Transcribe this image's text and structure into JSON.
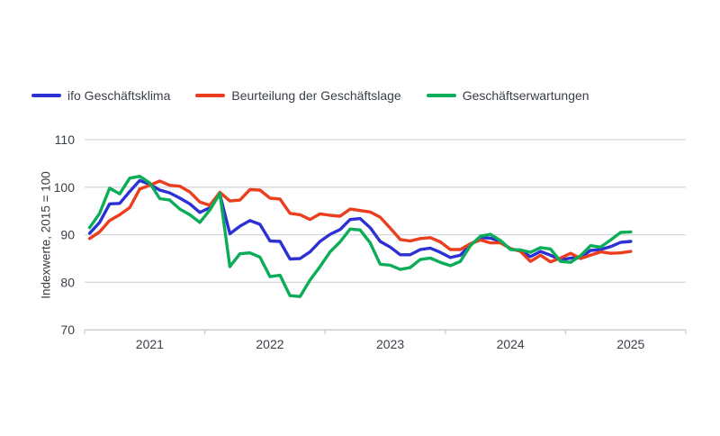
{
  "legend": [
    {
      "label": "ifo Geschäftsklima",
      "color": "#2d31d3"
    },
    {
      "label": "Beurteilung der Geschäftslage",
      "color": "#eb3e1f"
    },
    {
      "label": "Geschäftserwartungen",
      "color": "#0cad58"
    }
  ],
  "colors": {
    "background": "#ffffff",
    "text": "#3a3f47",
    "gridline": "#d4d7da",
    "baseline": "#c6cacd",
    "series_climate": "#2d31d3",
    "series_lage": "#eb3e1f",
    "series_erwartungen": "#0cad58"
  },
  "chart_data": {
    "type": "line",
    "title": "",
    "xlabel": "",
    "ylabel": "Indexwerte, 2015 = 100",
    "ylim": [
      70,
      110
    ],
    "yticks": [
      110,
      100,
      90,
      80,
      70
    ],
    "grid": "horizontal",
    "legend_position": "top",
    "x_start": "2021-01",
    "x_end": "2025-07",
    "x_frequency": "monthly",
    "x_year_labels": [
      "2021",
      "2022",
      "2023",
      "2024",
      "2025"
    ],
    "series": [
      {
        "name": "ifo Geschäftsklima",
        "color": "#2d31d3",
        "values": [
          90.3,
          92.6,
          96.5,
          96.6,
          99.1,
          101.4,
          100.6,
          99.4,
          98.8,
          97.7,
          96.5,
          94.7,
          95.7,
          98.5,
          90.2,
          91.8,
          93.0,
          92.2,
          88.7,
          88.6,
          84.9,
          85.0,
          86.4,
          88.6,
          90.1,
          91.1,
          93.2,
          93.4,
          91.5,
          88.6,
          87.4,
          85.8,
          85.8,
          86.9,
          87.2,
          86.3,
          85.2,
          85.7,
          87.9,
          89.4,
          89.3,
          88.6,
          87.0,
          86.6,
          85.4,
          86.5,
          85.7,
          84.7,
          85.1,
          85.2,
          86.7,
          86.9,
          87.5,
          88.4,
          88.6
        ]
      },
      {
        "name": "Beurteilung der Geschäftslage",
        "color": "#eb3e1f",
        "values": [
          89.2,
          90.6,
          93.0,
          94.2,
          95.7,
          99.6,
          100.4,
          101.3,
          100.4,
          100.2,
          99.0,
          96.9,
          96.2,
          98.9,
          97.1,
          97.3,
          99.5,
          99.4,
          97.7,
          97.5,
          94.5,
          94.2,
          93.2,
          94.4,
          94.1,
          93.9,
          95.4,
          95.1,
          94.8,
          93.7,
          91.4,
          89.0,
          88.7,
          89.2,
          89.4,
          88.5,
          86.9,
          86.9,
          88.1,
          88.9,
          88.3,
          88.3,
          87.1,
          86.5,
          84.4,
          85.7,
          84.3,
          85.1,
          86.1,
          85.0,
          85.7,
          86.4,
          86.1,
          86.2,
          86.5
        ]
      },
      {
        "name": "Geschäftserwartungen",
        "color": "#0cad58",
        "values": [
          91.5,
          94.5,
          99.8,
          98.6,
          101.9,
          102.3,
          100.9,
          97.6,
          97.3,
          95.4,
          94.2,
          92.6,
          95.2,
          98.7,
          83.3,
          86.0,
          86.2,
          85.3,
          81.2,
          81.5,
          77.2,
          77.0,
          80.5,
          83.3,
          86.4,
          88.5,
          91.2,
          91.0,
          88.3,
          83.8,
          83.6,
          82.7,
          83.1,
          84.8,
          85.1,
          84.2,
          83.5,
          84.4,
          87.7,
          89.7,
          90.1,
          88.8,
          86.9,
          86.8,
          86.3,
          87.3,
          87.0,
          84.4,
          84.2,
          85.6,
          87.7,
          87.4,
          88.9,
          90.5,
          90.6
        ]
      }
    ]
  }
}
